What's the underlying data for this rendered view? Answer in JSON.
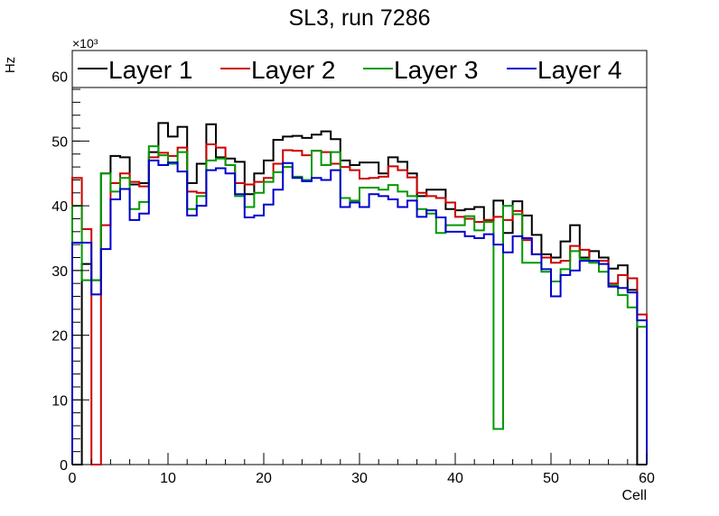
{
  "chart_data": {
    "type": "line",
    "title": "SL3, run 7286",
    "xlabel": "Cell",
    "ylabel": "Hz",
    "y_multiplier": "×10³",
    "xlim": [
      0,
      60
    ],
    "ylim": [
      0,
      64
    ],
    "x_ticks": [
      0,
      10,
      20,
      30,
      40,
      50,
      60
    ],
    "y_ticks": [
      0,
      10,
      20,
      30,
      40,
      50,
      60
    ],
    "legend_position": "top",
    "bins": 60,
    "series": [
      {
        "name": "Layer 1",
        "color": "#000000",
        "values": [
          0,
          31,
          28.5,
          45,
          47.7,
          47.5,
          43.3,
          43.5,
          48.3,
          52.8,
          50.7,
          52.2,
          43.5,
          46.5,
          52.6,
          47.5,
          47.3,
          46.8,
          41.8,
          45,
          47,
          50.2,
          50.7,
          50.8,
          50.5,
          51,
          51.5,
          50.3,
          47,
          46.3,
          46.7,
          46.7,
          45,
          47.5,
          46.8,
          45,
          41.5,
          42.5,
          42.5,
          39.5,
          39.3,
          39.5,
          39.8,
          37.8,
          40.8,
          35.8,
          40.7,
          38.5,
          35.5,
          32.5,
          32,
          34.5,
          37,
          32,
          33,
          32,
          30.3,
          30.8,
          27,
          0
        ]
      },
      {
        "name": "Layer 2",
        "color": "#cc0000",
        "values": [
          44.3,
          36.4,
          0,
          37,
          43.5,
          45,
          43.7,
          43,
          47.5,
          48.2,
          47.7,
          49,
          42.2,
          42,
          49.5,
          49,
          46.3,
          43.5,
          43.3,
          43.7,
          44.3,
          46.5,
          48.6,
          48.5,
          47.8,
          48.5,
          48.3,
          46.5,
          46,
          45.5,
          44.2,
          44.3,
          44.5,
          46.1,
          45.5,
          44.4,
          42,
          41.5,
          41.2,
          40.5,
          38.3,
          38,
          37.5,
          37.8,
          38.3,
          37.8,
          39.2,
          34.7,
          32.5,
          32,
          31.2,
          31.5,
          33.8,
          33.2,
          31.5,
          31.5,
          28,
          29.3,
          28.8,
          23.2
        ]
      },
      {
        "name": "Layer 3",
        "color": "#009900",
        "values": [
          40,
          28.5,
          28.5,
          45,
          42.2,
          44.3,
          39.5,
          40.6,
          49.2,
          47.8,
          46.5,
          48.3,
          39.5,
          41.5,
          47,
          47.3,
          46.3,
          41.5,
          39.8,
          42,
          43.7,
          45.2,
          46,
          44.5,
          44,
          48.5,
          46.3,
          48.3,
          41.2,
          40.8,
          42.8,
          42.8,
          42.5,
          43.2,
          42.2,
          41.5,
          39.5,
          38.8,
          35.8,
          37,
          37,
          38.4,
          36.2,
          37.5,
          5.5,
          40,
          38.7,
          31.2,
          31.2,
          29.8,
          28.3,
          30.2,
          33,
          31.8,
          31.2,
          29.8,
          27.7,
          26.2,
          24.3,
          21.3
        ]
      },
      {
        "name": "Layer 4",
        "color": "#0000cc",
        "values": [
          34.3,
          34.3,
          26.3,
          33.3,
          41,
          42.6,
          37.8,
          38.8,
          47,
          46.3,
          46.7,
          45.3,
          38.5,
          40,
          45.5,
          45.8,
          45,
          41.8,
          38.2,
          38.5,
          40.2,
          42.5,
          46.6,
          44.3,
          43.8,
          44.3,
          44,
          45.5,
          39.8,
          40.5,
          39.8,
          41.8,
          41.5,
          41,
          39.8,
          40.8,
          38.3,
          39.3,
          38.2,
          36,
          36,
          35.3,
          35,
          35.6,
          34,
          32.8,
          35.3,
          35,
          32.5,
          30.2,
          26,
          29.3,
          30,
          31.5,
          31.5,
          31,
          27.5,
          27.3,
          26.6,
          22.3
        ]
      }
    ]
  }
}
